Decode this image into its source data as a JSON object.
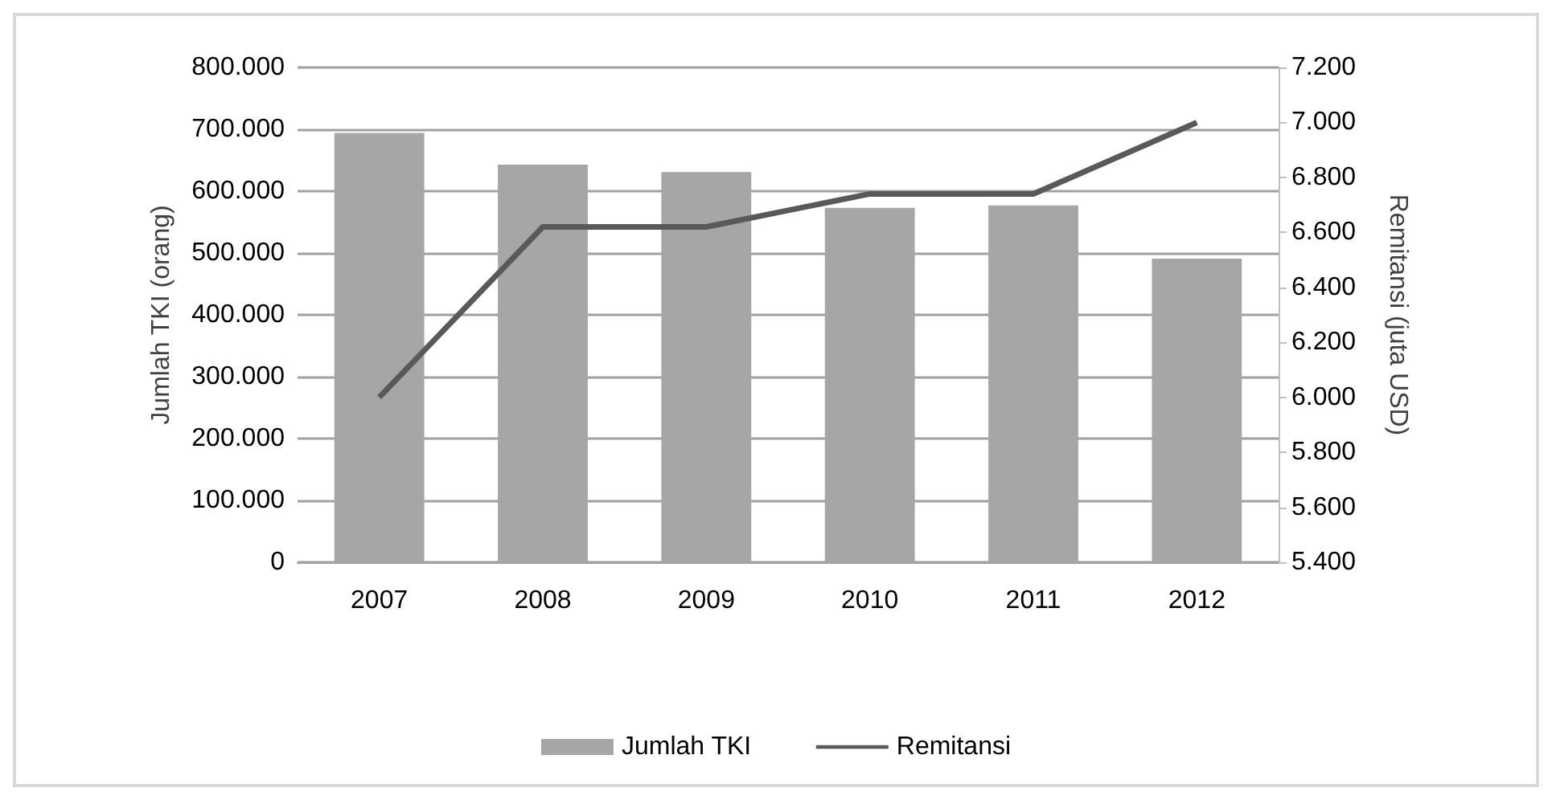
{
  "chart_data": {
    "type": "bar",
    "ylabel": "Jumlah TKI (orang)",
    "y2label": "Remitansi (juta USD)",
    "categories": [
      "2007",
      "2008",
      "2009",
      "2010",
      "2011",
      "2012"
    ],
    "series": [
      {
        "name": "Jumlah TKI",
        "color": "#a6a6a6",
        "values": [
          694000,
          643000,
          631000,
          573000,
          577000,
          491000
        ]
      },
      {
        "name": "Remitansi",
        "type": "line",
        "axis": "y2",
        "color": "#595959",
        "marker": "none",
        "values": [
          6000,
          6620,
          6620,
          6740,
          6740,
          7000
        ]
      }
    ],
    "ylim": [
      0,
      800000
    ],
    "yticks": [
      {
        "value": 0,
        "label": "0"
      },
      {
        "value": 100000,
        "label": "100.000"
      },
      {
        "value": 200000,
        "label": "200.000"
      },
      {
        "value": 300000,
        "label": "300.000"
      },
      {
        "value": 400000,
        "label": "400.000"
      },
      {
        "value": 500000,
        "label": "500.000"
      },
      {
        "value": 600000,
        "label": "600.000"
      },
      {
        "value": 700000,
        "label": "700.000"
      },
      {
        "value": 800000,
        "label": "800.000"
      }
    ],
    "y2lim": [
      5400,
      7200
    ],
    "y2ticks": [
      {
        "value": 5400,
        "label": "5.400"
      },
      {
        "value": 5600,
        "label": "5.600"
      },
      {
        "value": 5800,
        "label": "5.800"
      },
      {
        "value": 6000,
        "label": "6.000"
      },
      {
        "value": 6200,
        "label": "6.200"
      },
      {
        "value": 6400,
        "label": "6.400"
      },
      {
        "value": 6600,
        "label": "6.600"
      },
      {
        "value": 6800,
        "label": "6.800"
      },
      {
        "value": 7000,
        "label": "7.000"
      },
      {
        "value": 7200,
        "label": "7.200"
      }
    ],
    "grid": "y",
    "legend": "bottom"
  }
}
